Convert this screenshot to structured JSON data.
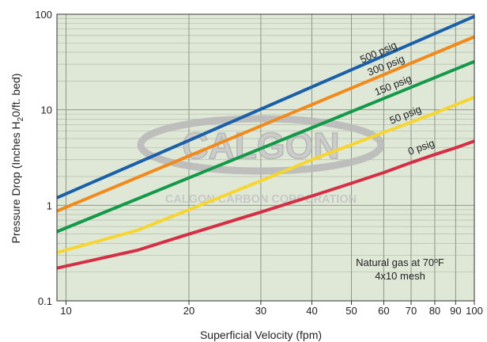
{
  "chart_data": {
    "type": "line",
    "x_scale": "log",
    "y_scale": "log",
    "xlabel": "Superficial Velocity (fpm)",
    "ylabel_parts": [
      "Pressure Drop (Inches H",
      "2",
      "0/ft. bed)"
    ],
    "xlim": [
      9.5,
      100
    ],
    "ylim": [
      0.1,
      100
    ],
    "x_ticks": [
      10,
      20,
      30,
      40,
      50,
      60,
      70,
      80,
      90,
      100
    ],
    "x_tick_labels": [
      "10",
      "20",
      "30",
      "40",
      "50",
      "60",
      "70",
      "80",
      "90",
      "100"
    ],
    "y_ticks": [
      0.1,
      1,
      10,
      100
    ],
    "y_tick_labels": [
      "0.1",
      "1",
      "10",
      "100"
    ],
    "grid": true,
    "background_color": "#dfe8d7",
    "series": [
      {
        "name": "500 psig",
        "color": "#1a5fa8",
        "x": [
          9.5,
          100
        ],
        "y": [
          1.2,
          95
        ]
      },
      {
        "name": "300 psig",
        "color": "#f08a1c",
        "x": [
          9.5,
          100
        ],
        "y": [
          0.87,
          58
        ]
      },
      {
        "name": "150 psig",
        "color": "#14994a",
        "x": [
          9.5,
          100
        ],
        "y": [
          0.53,
          32
        ]
      },
      {
        "name": "50 psig",
        "color": "#f7d531",
        "x": [
          9.5,
          15,
          20,
          30,
          40,
          50,
          60,
          70,
          80,
          90,
          100
        ],
        "y": [
          0.32,
          0.55,
          0.9,
          1.8,
          3.0,
          4.3,
          5.8,
          7.4,
          9.2,
          11.3,
          13.5
        ]
      },
      {
        "name": "0 psig",
        "color": "#d42f45",
        "x": [
          9.5,
          15,
          20,
          30,
          40,
          50,
          60,
          70,
          80,
          90,
          100
        ],
        "y": [
          0.22,
          0.34,
          0.5,
          0.85,
          1.25,
          1.7,
          2.2,
          2.8,
          3.4,
          4.0,
          4.7
        ]
      }
    ],
    "annotations": [
      "Natural gas at 70ºF",
      "4x10 mesh"
    ],
    "watermark": {
      "logo_text": "CALGON",
      "subtitle": "CALGON CARBON CORPORATION"
    }
  }
}
